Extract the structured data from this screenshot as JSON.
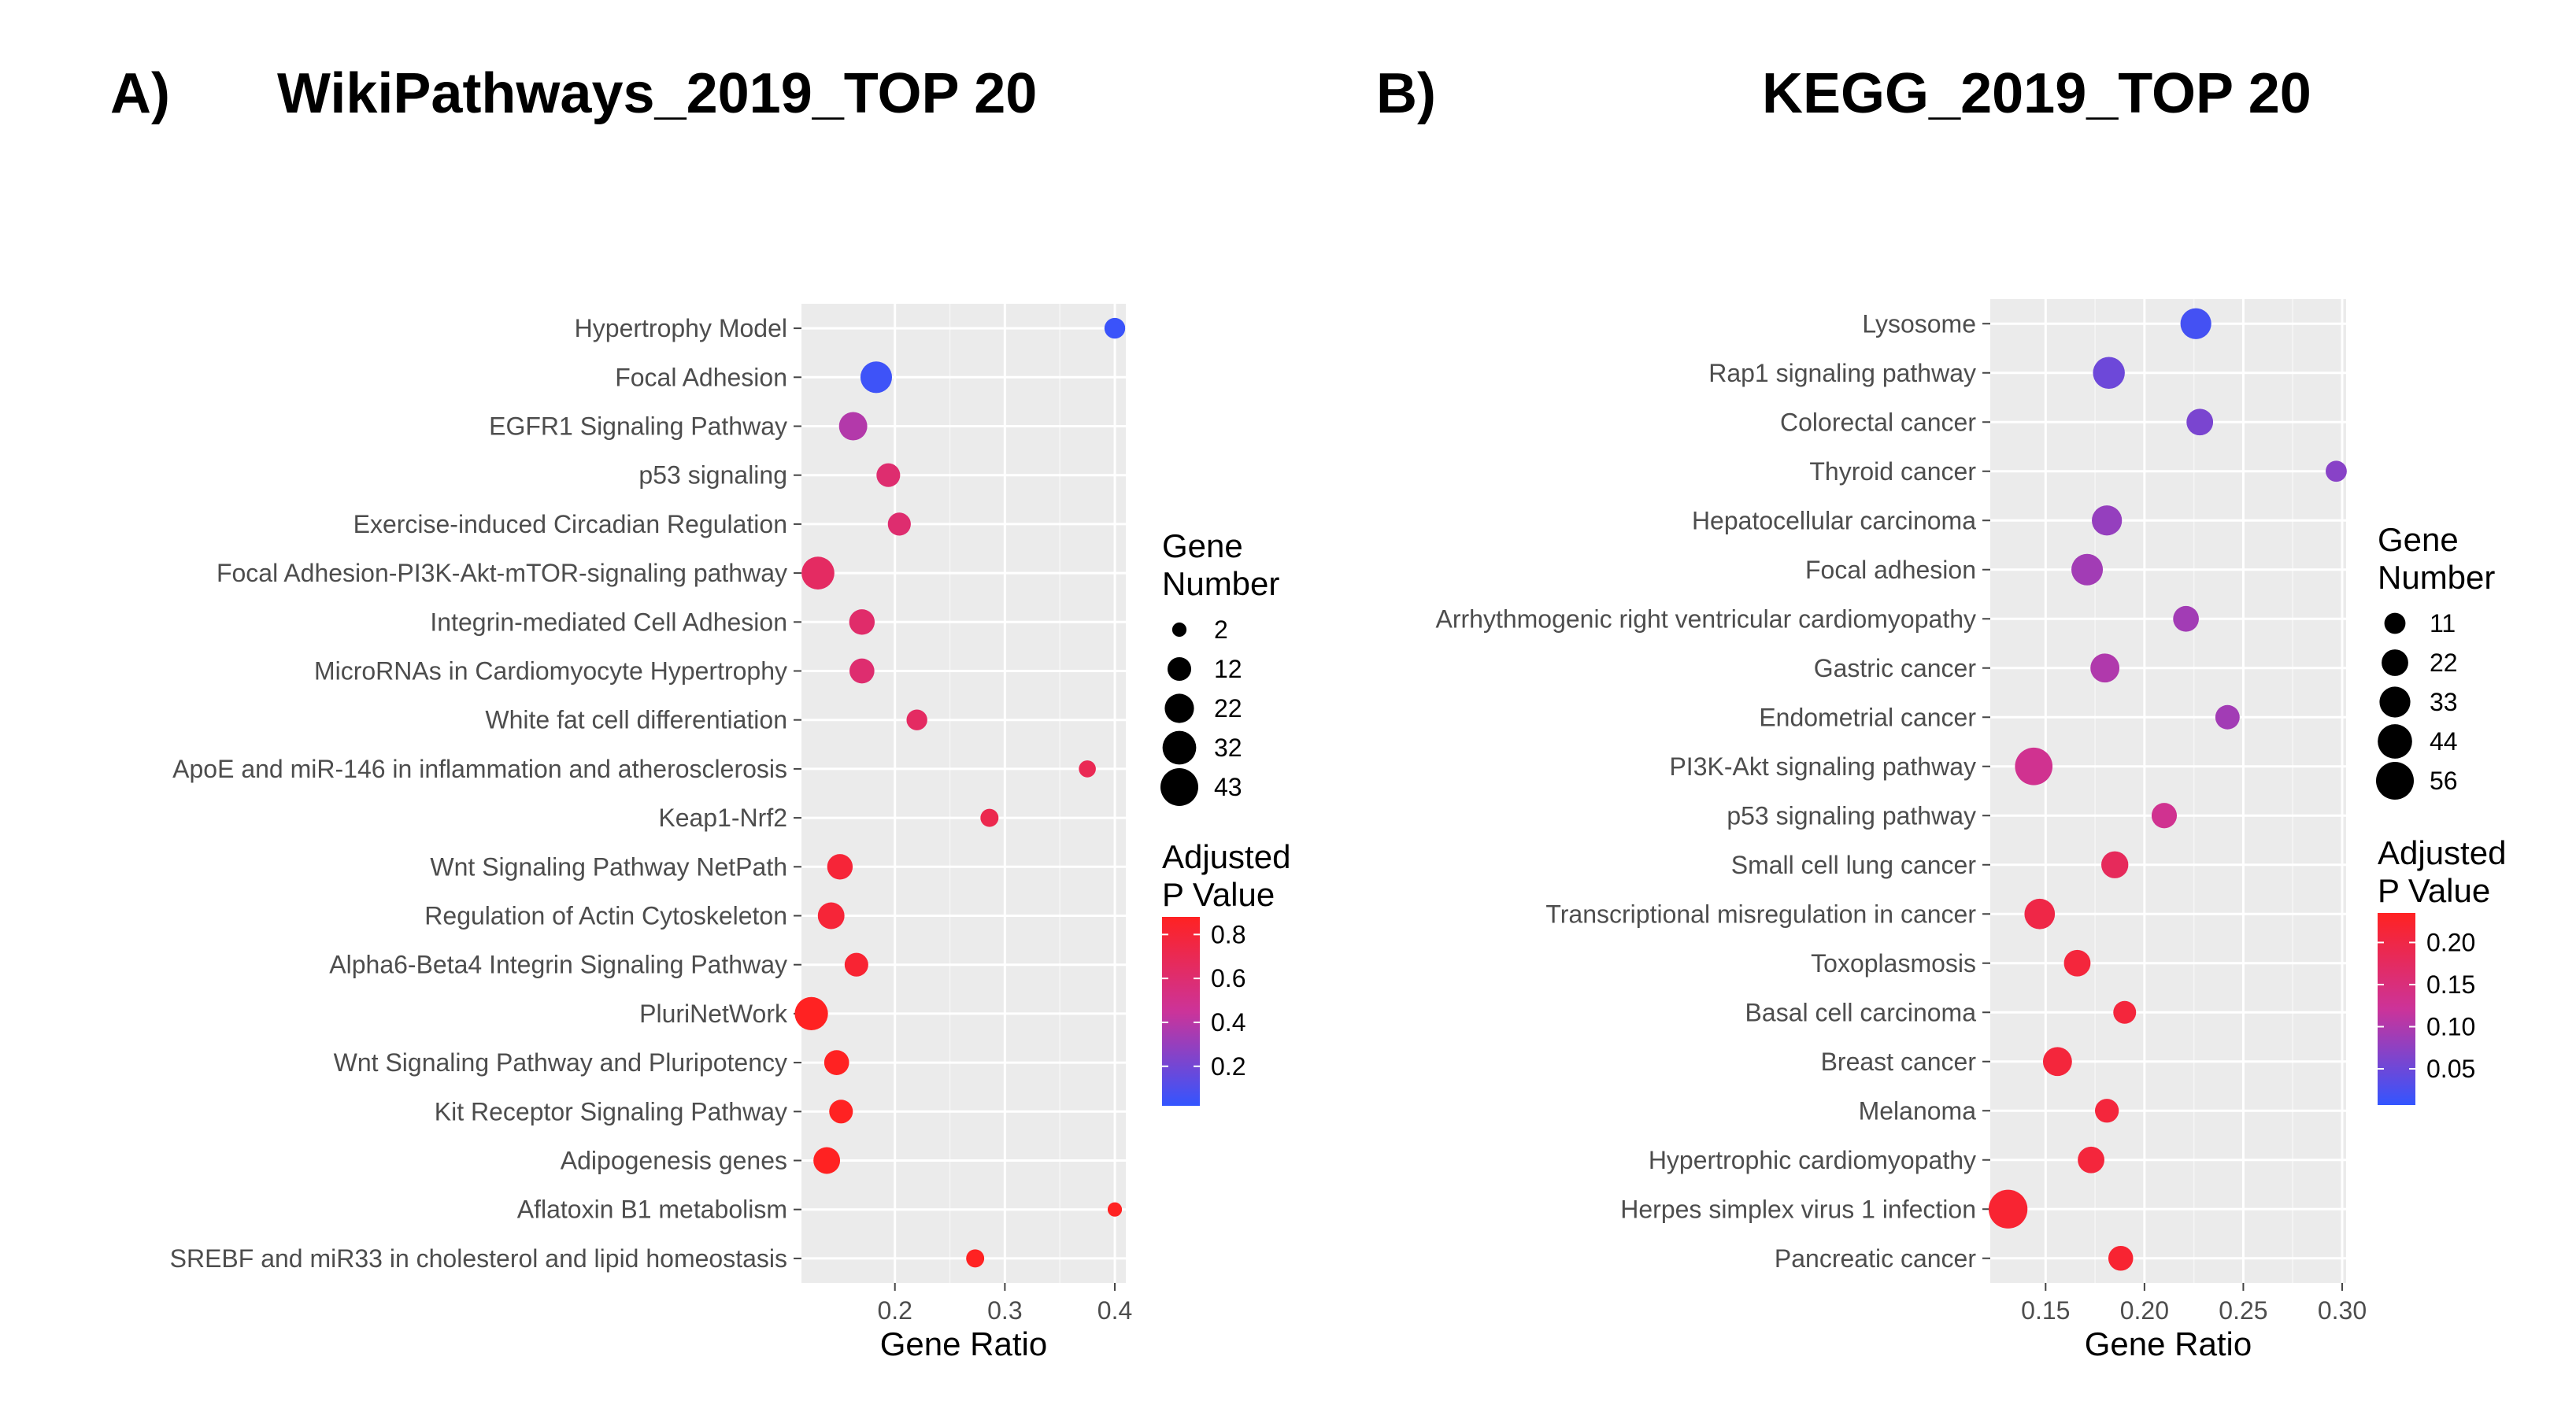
{
  "chart_data": [
    {
      "type": "scatter",
      "panel_label": "A)",
      "title": "WikiPathways_2019_TOP 20",
      "xlabel": "Gene Ratio",
      "ylabel": "",
      "xlim": [
        0.115,
        0.41
      ],
      "xticks": [
        0.2,
        0.3,
        0.4
      ],
      "xtick_labels": [
        "0.2",
        "0.3",
        "0.4"
      ],
      "grid": true,
      "categories": [
        "Hypertrophy Model",
        "Focal Adhesion",
        "EGFR1 Signaling Pathway",
        "p53 signaling",
        "Exercise-induced Circadian Regulation",
        "Focal Adhesion-PI3K-Akt-mTOR-signaling pathway",
        "Integrin-mediated Cell Adhesion",
        "MicroRNAs in Cardiomyocyte Hypertrophy",
        "White fat cell differentiation",
        "ApoE and miR-146 in inflammation and atherosclerosis",
        "Keap1-Nrf2",
        "Wnt Signaling Pathway NetPath",
        "Regulation of Actin Cytoskeleton",
        "Alpha6-Beta4 Integrin Signaling Pathway",
        "PluriNetWork",
        "Wnt Signaling Pathway and Pluripotency",
        "Kit Receptor Signaling Pathway",
        "Adipogenesis genes",
        "Aflatoxin B1 metabolism",
        "SREBF and miR33 in cholesterol and lipid homeostasis"
      ],
      "gene_ratio": [
        0.4,
        0.183,
        0.162,
        0.194,
        0.204,
        0.13,
        0.17,
        0.17,
        0.22,
        0.375,
        0.286,
        0.15,
        0.142,
        0.165,
        0.124,
        0.147,
        0.151,
        0.138,
        0.4,
        0.273
      ],
      "gene_number": [
        8,
        27,
        20,
        12,
        11,
        30,
        15,
        14,
        8,
        4,
        5,
        15,
        17,
        12,
        31,
        14,
        12,
        17,
        2,
        5
      ],
      "adjusted_p": [
        0.04,
        0.05,
        0.38,
        0.6,
        0.6,
        0.65,
        0.62,
        0.6,
        0.65,
        0.7,
        0.72,
        0.8,
        0.8,
        0.82,
        0.88,
        0.9,
        0.9,
        0.9,
        0.9,
        0.9
      ],
      "size_legend": {
        "title_line1": "Gene",
        "title_line2": "Number",
        "values": [
          2,
          12,
          22,
          32,
          43
        ],
        "labels": [
          "2",
          "12",
          "22",
          "32",
          "43"
        ]
      },
      "color_legend": {
        "title_line1": "Adjusted",
        "title_line2": "P Value",
        "range": [
          0.02,
          0.88
        ],
        "ticks": [
          0.2,
          0.4,
          0.6,
          0.8
        ],
        "tick_labels": [
          "0.2",
          "0.4",
          "0.6",
          "0.8"
        ],
        "low_color": "#3355ff",
        "mid_color": "#cc3399",
        "high_color": "#ff2222"
      }
    },
    {
      "type": "scatter",
      "panel_label": "B)",
      "title": "KEGG_2019_TOP 20",
      "xlabel": "Gene Ratio",
      "ylabel": "",
      "xlim": [
        0.122,
        0.302
      ],
      "xticks": [
        0.15,
        0.2,
        0.25,
        0.3
      ],
      "xtick_labels": [
        "0.15",
        "0.20",
        "0.25",
        "0.30"
      ],
      "grid": true,
      "categories": [
        "Lysosome",
        "Rap1 signaling pathway",
        "Colorectal cancer",
        "Thyroid cancer",
        "Hepatocellular carcinoma",
        "Focal adhesion",
        "Arrhythmogenic right ventricular cardiomyopathy",
        "Gastric cancer",
        "Endometrial cancer",
        "PI3K-Akt signaling pathway",
        "p53 signaling pathway",
        "Small cell lung cancer",
        "Transcriptional misregulation in cancer",
        "Toxoplasmosis",
        "Basal cell carcinoma",
        "Breast cancer",
        "Melanoma",
        "Hypertrophic cardiomyopathy",
        "Herpes simplex virus 1 infection",
        "Pancreatic cancer"
      ],
      "gene_ratio": [
        0.226,
        0.182,
        0.228,
        0.297,
        0.181,
        0.171,
        0.221,
        0.18,
        0.242,
        0.144,
        0.21,
        0.185,
        0.147,
        0.166,
        0.19,
        0.156,
        0.181,
        0.173,
        0.131,
        0.188
      ],
      "gene_number": [
        33,
        36,
        22,
        11,
        31,
        35,
        20,
        28,
        17,
        55,
        19,
        23,
        32,
        22,
        14,
        28,
        16,
        22,
        60,
        18
      ],
      "adjusted_p": [
        0.02,
        0.05,
        0.06,
        0.07,
        0.08,
        0.09,
        0.09,
        0.1,
        0.09,
        0.13,
        0.13,
        0.18,
        0.2,
        0.21,
        0.21,
        0.21,
        0.21,
        0.21,
        0.22,
        0.22
      ],
      "size_legend": {
        "title_line1": "Gene",
        "title_line2": "Number",
        "values": [
          11,
          22,
          33,
          44,
          56
        ],
        "labels": [
          "11",
          "22",
          "33",
          "44",
          "56"
        ]
      },
      "color_legend": {
        "title_line1": "Adjusted",
        "title_line2": "P Value",
        "range": [
          0.007,
          0.235
        ],
        "ticks": [
          0.05,
          0.1,
          0.15,
          0.2
        ],
        "tick_labels": [
          "0.05",
          "0.10",
          "0.15",
          "0.20"
        ],
        "low_color": "#3355ff",
        "mid_color": "#cc3399",
        "high_color": "#ff2222"
      }
    }
  ]
}
